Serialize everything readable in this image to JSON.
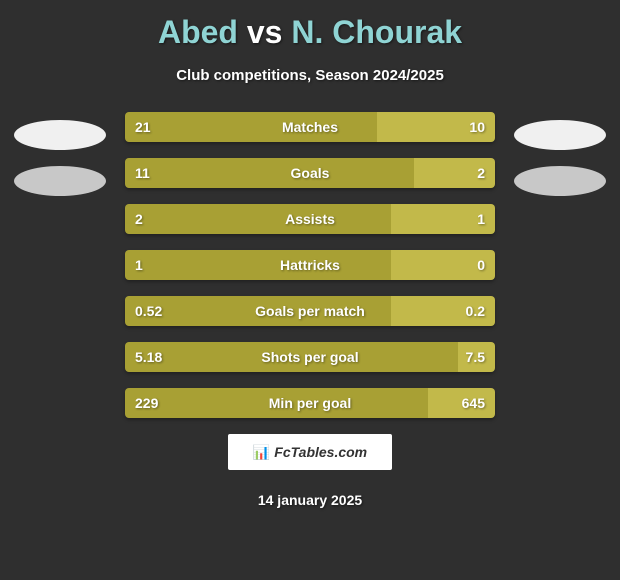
{
  "title": {
    "player1": "Abed",
    "vs": "vs",
    "player2": "N. Chourak"
  },
  "subtitle": "Club competitions, Season 2024/2025",
  "colors": {
    "background": "#2f2f2f",
    "bar_left": "#a8a034",
    "bar_right": "#c2b94a",
    "text": "#ffffff",
    "title_accent": "#8fd4d4"
  },
  "bar_dimensions": {
    "total_width": 370,
    "height": 30,
    "gap": 16
  },
  "rows": [
    {
      "label": "Matches",
      "left_val": "21",
      "right_val": "10",
      "left_pct": 68,
      "right_pct": 32
    },
    {
      "label": "Goals",
      "left_val": "11",
      "right_val": "2",
      "left_pct": 78,
      "right_pct": 22
    },
    {
      "label": "Assists",
      "left_val": "2",
      "right_val": "1",
      "left_pct": 72,
      "right_pct": 28
    },
    {
      "label": "Hattricks",
      "left_val": "1",
      "right_val": "0",
      "left_pct": 72,
      "right_pct": 28
    },
    {
      "label": "Goals per match",
      "left_val": "0.52",
      "right_val": "0.2",
      "left_pct": 72,
      "right_pct": 28
    },
    {
      "label": "Shots per goal",
      "left_val": "5.18",
      "right_val": "7.5",
      "left_pct": 90,
      "right_pct": 10
    },
    {
      "label": "Min per goal",
      "left_val": "229",
      "right_val": "645",
      "left_pct": 82,
      "right_pct": 18
    }
  ],
  "watermark": "FcTables.com",
  "date": "14 january 2025"
}
